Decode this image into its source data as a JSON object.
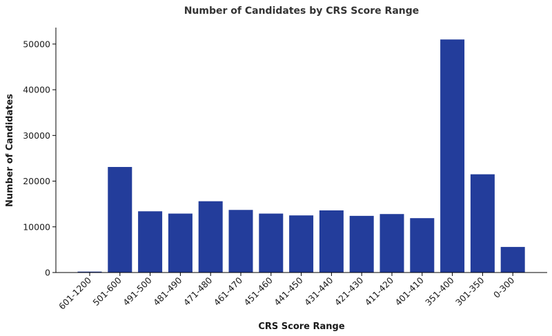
{
  "chart_data": {
    "type": "bar",
    "title": "Number of Candidates by CRS Score Range",
    "xlabel": "CRS Score Range",
    "ylabel": "Number of Candidates",
    "categories": [
      "601-1200",
      "501-600",
      "491-500",
      "481-490",
      "471-480",
      "461-470",
      "451-460",
      "441-450",
      "431-440",
      "421-430",
      "411-420",
      "401-410",
      "351-400",
      "301-350",
      "0-300"
    ],
    "values": [
      200,
      23100,
      13400,
      12900,
      15600,
      13700,
      12900,
      12500,
      13600,
      12400,
      12800,
      11900,
      51000,
      21500,
      5600
    ],
    "ylim": [
      0,
      53600
    ],
    "yticks": [
      0,
      10000,
      20000,
      30000,
      40000,
      50000
    ],
    "bar_color": "#233d9b",
    "grid": false,
    "legend": "none"
  }
}
